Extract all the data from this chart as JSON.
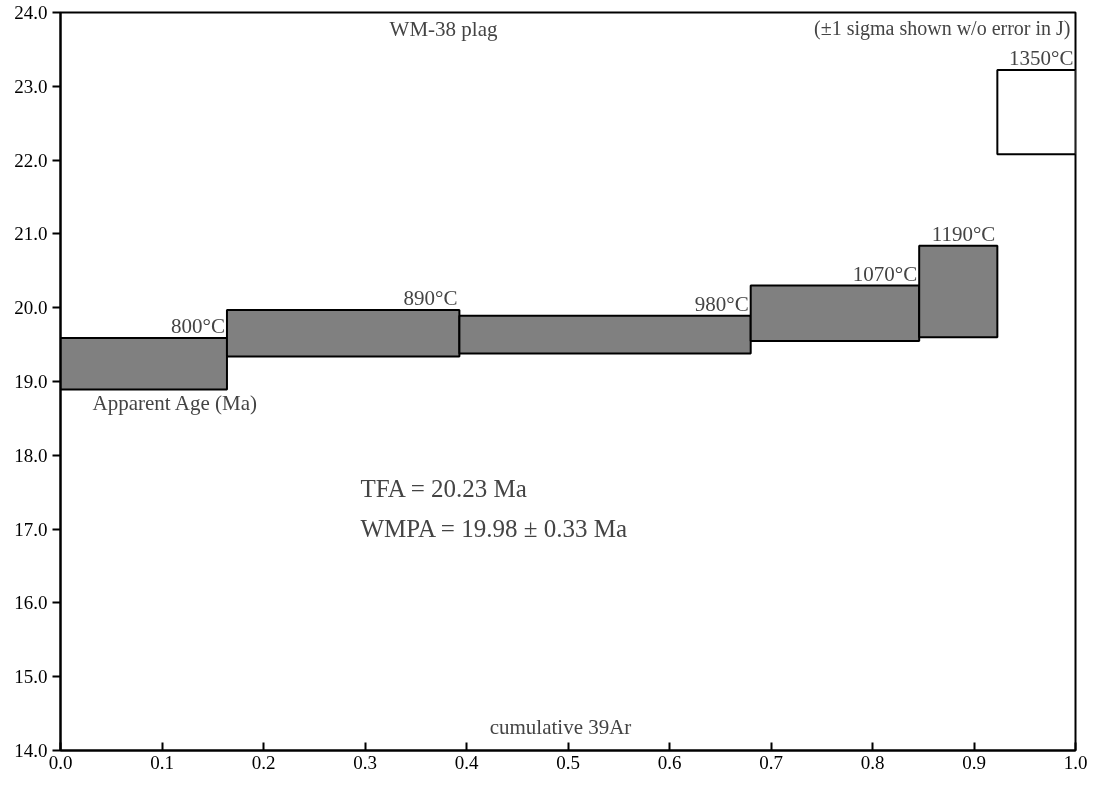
{
  "chart_data": {
    "type": "histogram",
    "title": "WM-38 plag",
    "xlabel": "cumulative 39Ar",
    "ylabel": "Apparent Age (Ma)",
    "bins": [
      0.0,
      0.164,
      0.393,
      0.68,
      0.846,
      0.923,
      1.0
    ],
    "base": [
      18.89,
      19.34,
      19.38,
      19.55,
      19.6,
      22.08
    ],
    "values": [
      0.7,
      0.63,
      0.51,
      0.75,
      1.24,
      1.14
    ],
    "colors": [
      "#808080",
      "#808080",
      "#808080",
      "#808080",
      "#808080",
      "#ffffff"
    ],
    "annotations": [
      "(±1 sigma shown w/o error in J)",
      "TFA = 20.23 Ma",
      "WMPA = 19.98 ± 0.33 Ma",
      {
        "text": "800°C",
        "x": 0.164,
        "y": 19.59
      },
      {
        "text": "890°C",
        "x": 0.393,
        "y": 19.97
      },
      {
        "text": "980°C",
        "x": 0.68,
        "y": 19.89
      },
      {
        "text": "1070°C",
        "x": 0.846,
        "y": 20.3
      },
      {
        "text": "1190°C",
        "x": 0.923,
        "y": 20.84
      },
      {
        "text": "1350°C",
        "x": 1.0,
        "y": 23.22
      }
    ],
    "xlim": [
      0.0,
      1.0
    ],
    "xticks": [
      {
        "value": 0.0,
        "label": "0.0"
      },
      0.1,
      0.2,
      0.3,
      0.4,
      0.5,
      0.6,
      0.7,
      0.8,
      0.9,
      {
        "value": 1.0,
        "label": "1.0"
      }
    ],
    "ylim": [
      14.0,
      24.0
    ],
    "yticks": [
      {
        "value": 14,
        "label": "14.0"
      },
      {
        "value": 15,
        "label": "15.0"
      },
      {
        "value": 16,
        "label": "16.0"
      },
      {
        "value": 17,
        "label": "17.0"
      },
      {
        "value": 18,
        "label": "18.0"
      },
      {
        "value": 19,
        "label": "19.0"
      },
      {
        "value": 20,
        "label": "20.0"
      },
      {
        "value": 21,
        "label": "21.0"
      },
      {
        "value": 22,
        "label": "22.0"
      },
      {
        "value": 23,
        "label": "23.0"
      },
      {
        "value": 24,
        "label": "24.0"
      }
    ],
    "grid": false
  }
}
